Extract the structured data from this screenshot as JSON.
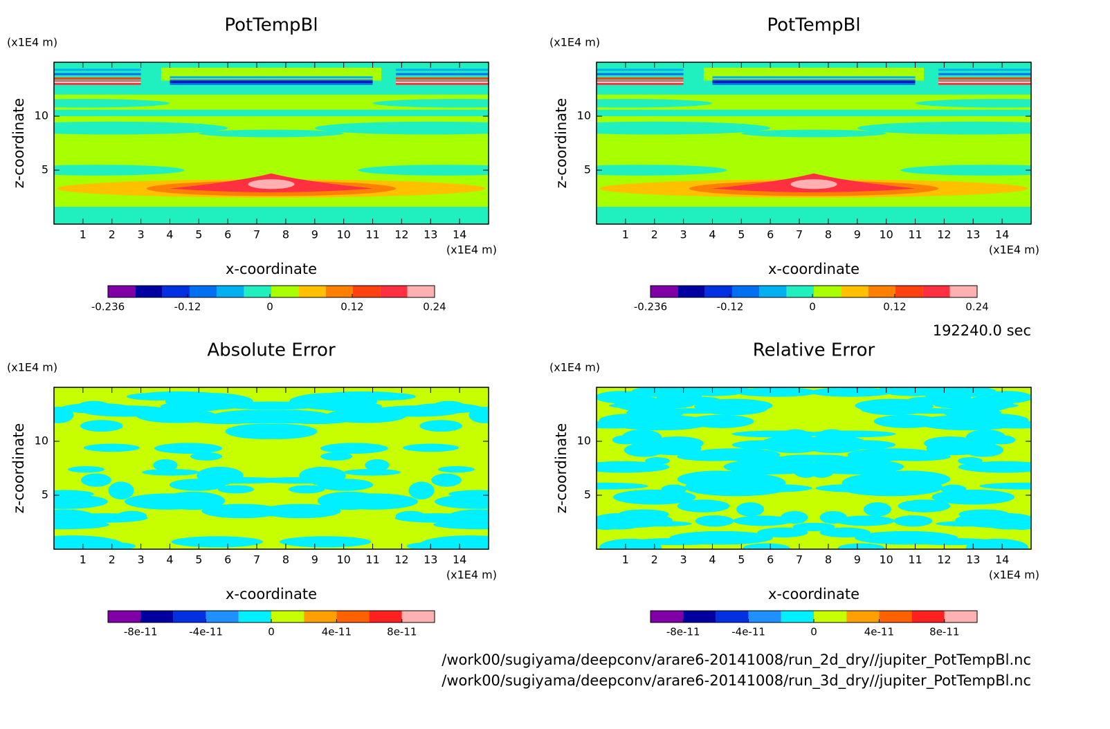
{
  "chart_data": [
    {
      "type": "contour",
      "title": "PotTempBl",
      "x_label": "x-coordinate",
      "y_label": "z-coordinate",
      "x_units": "(x1E4 m)",
      "y_units": "(x1E4 m)",
      "xlim": [
        0,
        15
      ],
      "ylim": [
        0,
        15
      ],
      "xticks": [
        1,
        2,
        3,
        4,
        5,
        6,
        7,
        8,
        9,
        10,
        11,
        12,
        13,
        14
      ],
      "yticks": [
        5,
        10
      ],
      "colorbar": {
        "lim": [
          -0.236,
          0.24
        ],
        "ticks": [
          -0.236,
          -0.12,
          0,
          0.12,
          0.24
        ],
        "colors": [
          "#8000a8",
          "#0000a0",
          "#0030e0",
          "#0070f0",
          "#00b0f0",
          "#20f0c0",
          "#a8ff00",
          "#ffc000",
          "#ff8000",
          "#ff4010",
          "#ff3040",
          "#ffb0b0"
        ]
      }
    },
    {
      "type": "contour",
      "title": "PotTempBl",
      "x_label": "x-coordinate",
      "y_label": "z-coordinate",
      "x_units": "(x1E4 m)",
      "y_units": "(x1E4 m)",
      "xlim": [
        0,
        15
      ],
      "ylim": [
        0,
        15
      ],
      "xticks": [
        1,
        2,
        3,
        4,
        5,
        6,
        7,
        8,
        9,
        10,
        11,
        12,
        13,
        14
      ],
      "yticks": [
        5,
        10
      ],
      "colorbar": {
        "lim": [
          -0.236,
          0.24
        ],
        "ticks": [
          -0.236,
          -0.12,
          0,
          0.12,
          0.24
        ],
        "colors": [
          "#8000a8",
          "#0000a0",
          "#0030e0",
          "#0070f0",
          "#00b0f0",
          "#20f0c0",
          "#a8ff00",
          "#ffc000",
          "#ff8000",
          "#ff4010",
          "#ff3040",
          "#ffb0b0"
        ]
      }
    },
    {
      "type": "contour",
      "title": "Absolute Error",
      "x_label": "x-coordinate",
      "y_label": "z-coordinate",
      "x_units": "(x1E4 m)",
      "y_units": "(x1E4 m)",
      "xlim": [
        0,
        15
      ],
      "ylim": [
        0,
        15
      ],
      "xticks": [
        1,
        2,
        3,
        4,
        5,
        6,
        7,
        8,
        9,
        10,
        11,
        12,
        13,
        14
      ],
      "yticks": [
        5,
        10
      ],
      "colorbar": {
        "lim": [
          -1e-10,
          1e-10
        ],
        "ticks": [
          -8e-11,
          -4e-11,
          0,
          4e-11,
          8e-11
        ],
        "colors": [
          "#8000a8",
          "#0000a0",
          "#0030e0",
          "#1e90ff",
          "#00f0ff",
          "#c8ff00",
          "#ffa000",
          "#ff6000",
          "#ff2020",
          "#ffb0b0"
        ]
      }
    },
    {
      "type": "contour",
      "title": "Relative Error",
      "x_label": "x-coordinate",
      "y_label": "z-coordinate",
      "x_units": "(x1E4 m)",
      "y_units": "(x1E4 m)",
      "xlim": [
        0,
        15
      ],
      "ylim": [
        0,
        15
      ],
      "xticks": [
        1,
        2,
        3,
        4,
        5,
        6,
        7,
        8,
        9,
        10,
        11,
        12,
        13,
        14
      ],
      "yticks": [
        5,
        10
      ],
      "colorbar": {
        "lim": [
          -1e-10,
          1e-10
        ],
        "ticks": [
          -8e-11,
          -4e-11,
          0,
          4e-11,
          8e-11
        ],
        "colors": [
          "#8000a8",
          "#0000a0",
          "#0030e0",
          "#1e90ff",
          "#00f0ff",
          "#c8ff00",
          "#ffa000",
          "#ff6000",
          "#ff2020",
          "#ffb0b0"
        ]
      }
    }
  ],
  "time_label": "192240.0 sec",
  "files": [
    "/work00/sugiyama/deepconv/arare6-20141008/run_2d_dry//jupiter_PotTempBl.nc",
    "/work00/sugiyama/deepconv/arare6-20141008/run_3d_dry//jupiter_PotTempBl.nc"
  ]
}
